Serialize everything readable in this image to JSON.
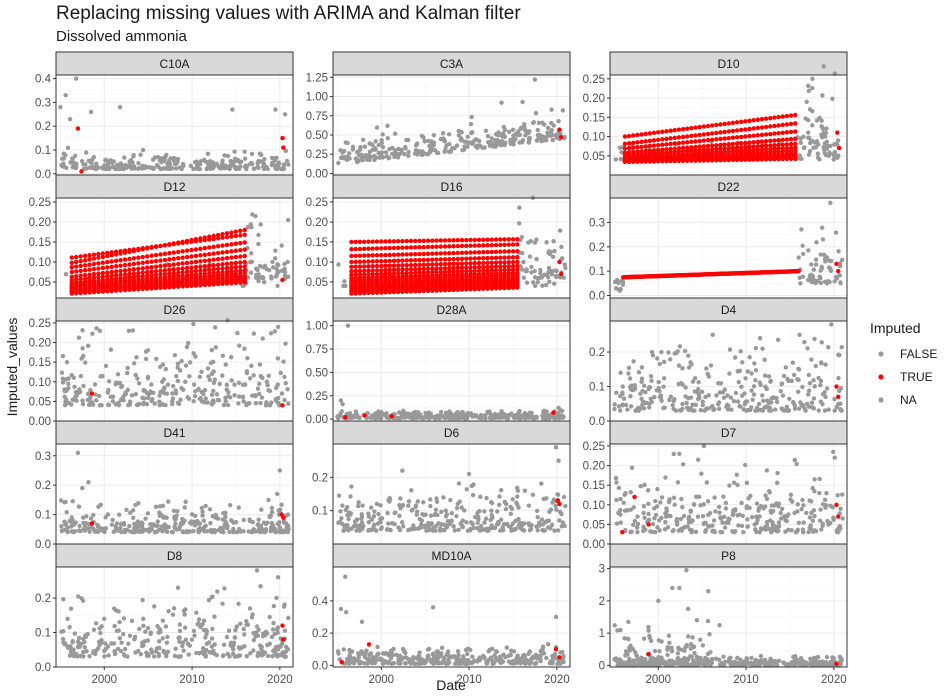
{
  "title": "Replacing missing values with ARIMA and Kalman filter",
  "subtitle": "Dissolved ammonia",
  "chart_data": {
    "type": "scatter",
    "title": "Replacing missing values with ARIMA and Kalman filter",
    "subtitle": "Dissolved ammonia",
    "xlabel": "Date",
    "ylabel": "Imputed_values",
    "x_ticks": [
      2000,
      2010,
      2020
    ],
    "xlim": [
      1994.5,
      2021.5
    ],
    "legend": {
      "title": "Imputed",
      "position": "right",
      "entries": [
        {
          "label": "FALSE",
          "color": "#999999"
        },
        {
          "label": "TRUE",
          "color": "#ff0000"
        },
        {
          "label": "NA",
          "color": "#999999"
        }
      ]
    },
    "colors": {
      "FALSE": "#999999",
      "TRUE": "#ff0000",
      "NA": "#999999"
    },
    "facets": [
      {
        "name": "C10A",
        "ylim": [
          -0.005,
          0.415
        ],
        "yticks": [
          0.0,
          0.1,
          0.2,
          0.3,
          0.4
        ],
        "ytick_labels": [
          "0.0",
          "0.1",
          "0.2",
          "0.3",
          "0.4"
        ],
        "observed": {
          "x_range": [
            1995.0,
            2021.0
          ],
          "base": 0.02,
          "spread": 0.07,
          "count": 260,
          "high": [
            [
              1995.0,
              0.28
            ],
            [
              1995.6,
              0.33
            ],
            [
              1996.1,
              0.23
            ],
            [
              1996.8,
              0.4
            ],
            [
              1998.5,
              0.26
            ],
            [
              2001.8,
              0.28
            ],
            [
              2014.6,
              0.27
            ],
            [
              2019.5,
              0.27
            ],
            [
              2020.6,
              0.25
            ]
          ]
        },
        "imputed": [
          [
            1997.0,
            0.19
          ],
          [
            2020.3,
            0.15
          ],
          [
            2020.4,
            0.11
          ],
          [
            1997.4,
            0.01
          ]
        ]
      },
      {
        "name": "C3A",
        "ylim": [
          -0.02,
          1.28
        ],
        "yticks": [
          0.0,
          0.25,
          0.5,
          0.75,
          1.0,
          1.25
        ],
        "ytick_labels": [
          "0.00",
          "0.25",
          "0.50",
          "0.75",
          "1.00",
          "1.25"
        ],
        "observed": {
          "x_range": [
            1995.0,
            2021.0
          ],
          "trend": [
            0.12,
            0.45
          ],
          "spread": 0.35,
          "count": 280,
          "high": [
            [
              2017.5,
              1.22
            ],
            [
              2013.7,
              0.92
            ],
            [
              2016.1,
              0.93
            ],
            [
              2019.4,
              0.83
            ],
            [
              2020.2,
              0.68
            ]
          ]
        },
        "imputed": [
          [
            2020.3,
            0.57
          ],
          [
            2020.5,
            0.47
          ]
        ]
      },
      {
        "name": "D10",
        "ylim": [
          0.0,
          0.26
        ],
        "yticks": [
          0.05,
          0.1,
          0.15,
          0.2,
          0.25
        ],
        "ytick_labels": [
          "0.05",
          "0.10",
          "0.15",
          "0.20",
          "0.25"
        ],
        "observed": {
          "x_range": [
            1995.0,
            2021.0
          ],
          "base": 0.04,
          "spread": 0.05,
          "count": 90,
          "late_range": [
            2015.8,
            2021.0
          ],
          "late_base": 0.05,
          "late_spread": 0.18,
          "late_count": 60
        },
        "imputed_lines": {
          "x_range": [
            1996.2,
            2015.6
          ],
          "count": 42,
          "lines": [
            [
              0.1,
              0.156
            ],
            [
              0.081,
              0.134
            ],
            [
              0.069,
              0.113
            ],
            [
              0.058,
              0.094
            ],
            [
              0.052,
              0.081
            ],
            [
              0.047,
              0.071
            ],
            [
              0.043,
              0.063
            ],
            [
              0.04,
              0.056
            ],
            [
              0.038,
              0.051
            ],
            [
              0.036,
              0.047
            ],
            [
              0.035,
              0.044
            ],
            [
              0.034,
              0.042
            ]
          ]
        },
        "imputed": [
          [
            2020.4,
            0.11
          ],
          [
            2020.6,
            0.07
          ]
        ]
      },
      {
        "name": "D12",
        "ylim": [
          0.01,
          0.26
        ],
        "yticks": [
          0.05,
          0.1,
          0.15,
          0.2,
          0.25
        ],
        "ytick_labels": [
          "0.05",
          "0.10",
          "0.15",
          "0.20",
          "0.25"
        ],
        "observed": {
          "x_range": [
            1995.0,
            2021.0
          ],
          "base": 0.04,
          "spread": 0.05,
          "count": 50,
          "late_range": [
            2016.0,
            2021.0
          ],
          "late_base": 0.06,
          "late_spread": 0.16,
          "late_count": 55
        },
        "imputed_lines": {
          "x_range": [
            1996.3,
            2016.0
          ],
          "count": 40,
          "lines": [
            [
              0.098,
              0.18
            ],
            [
              0.111,
              0.168
            ],
            [
              0.087,
              0.149
            ],
            [
              0.075,
              0.131
            ],
            [
              0.063,
              0.115
            ],
            [
              0.055,
              0.1
            ],
            [
              0.048,
              0.089
            ],
            [
              0.043,
              0.079
            ],
            [
              0.039,
              0.072
            ],
            [
              0.036,
              0.066
            ],
            [
              0.033,
              0.061
            ],
            [
              0.03,
              0.057
            ],
            [
              0.027,
              0.054
            ],
            [
              0.024,
              0.051
            ],
            [
              0.021,
              0.049
            ]
          ]
        },
        "imputed": [
          [
            2020.3,
            0.055
          ]
        ]
      },
      {
        "name": "D16",
        "ylim": [
          0.01,
          0.26
        ],
        "yticks": [
          0.05,
          0.1,
          0.15,
          0.2,
          0.25
        ],
        "ytick_labels": [
          "0.05",
          "0.10",
          "0.15",
          "0.20",
          "0.25"
        ],
        "observed": {
          "x_range": [
            1995.0,
            2021.0
          ],
          "base": 0.04,
          "spread": 0.05,
          "count": 50,
          "late_range": [
            2015.6,
            2021.0
          ],
          "late_base": 0.06,
          "late_spread": 0.17,
          "late_count": 55
        },
        "imputed_lines": {
          "x_range": [
            1996.6,
            2015.5
          ],
          "count": 40,
          "lines": [
            [
              0.15,
              0.157
            ],
            [
              0.132,
              0.144
            ],
            [
              0.115,
              0.127
            ],
            [
              0.1,
              0.112
            ],
            [
              0.088,
              0.1
            ],
            [
              0.077,
              0.09
            ],
            [
              0.068,
              0.081
            ],
            [
              0.06,
              0.073
            ],
            [
              0.054,
              0.067
            ],
            [
              0.049,
              0.061
            ],
            [
              0.044,
              0.056
            ],
            [
              0.04,
              0.052
            ],
            [
              0.037,
              0.049
            ],
            [
              0.033,
              0.046
            ],
            [
              0.03,
              0.043
            ],
            [
              0.026,
              0.04
            ],
            [
              0.021,
              0.036
            ]
          ]
        },
        "imputed": [
          [
            2020.3,
            0.1
          ],
          [
            2020.5,
            0.07
          ]
        ]
      },
      {
        "name": "D22",
        "ylim": [
          -0.01,
          0.4
        ],
        "yticks": [
          0.0,
          0.1,
          0.2,
          0.3
        ],
        "ytick_labels": [
          "0.0",
          "0.1",
          "0.2",
          "0.3"
        ],
        "observed": {
          "x_range": [
            1995.0,
            1996.0
          ],
          "base": 0.02,
          "spread": 0.06,
          "count": 12,
          "late_range": [
            2016.0,
            2021.0
          ],
          "late_base": 0.05,
          "late_spread": 0.2,
          "late_count": 60,
          "high": [
            [
              2019.6,
              0.38
            ]
          ]
        },
        "imputed_lines": {
          "x_range": [
            1996.0,
            2016.0
          ],
          "count": 240,
          "lines": [
            [
              0.075,
              0.1
            ]
          ]
        },
        "imputed": [
          [
            2020.3,
            0.13
          ],
          [
            2020.5,
            0.1
          ]
        ]
      },
      {
        "name": "D26",
        "ylim": [
          0.0,
          0.255
        ],
        "yticks": [
          0.0,
          0.05,
          0.1,
          0.15,
          0.2,
          0.25
        ],
        "ytick_labels": [
          "0.00",
          "0.05",
          "0.10",
          "0.15",
          "0.20",
          "0.25"
        ],
        "observed": {
          "x_range": [
            1995.0,
            2021.0
          ],
          "base": 0.04,
          "spread": 0.17,
          "count": 300,
          "high": [
            [
              2019.8,
              0.24
            ],
            [
              1999.5,
              0.23
            ],
            [
              2002.8,
              0.23
            ]
          ]
        },
        "imputed": [
          [
            1998.6,
            0.07
          ],
          [
            2020.3,
            0.04
          ]
        ]
      },
      {
        "name": "D28A",
        "ylim": [
          -0.02,
          1.05
        ],
        "yticks": [
          0.0,
          0.25,
          0.5,
          0.75,
          1.0
        ],
        "ytick_labels": [
          "0.00",
          "0.25",
          "0.50",
          "0.75",
          "1.00"
        ],
        "observed": {
          "x_range": [
            1995.0,
            2021.0
          ],
          "base": 0.01,
          "spread": 0.07,
          "count": 330,
          "high": [
            [
              1996.2,
              1.0
            ],
            [
              1995.4,
              0.2
            ],
            [
              1995.6,
              0.16
            ],
            [
              2020.2,
              0.12
            ]
          ]
        },
        "imputed": [
          [
            1995.9,
            0.02
          ],
          [
            1998.1,
            0.04
          ],
          [
            2001.2,
            0.03
          ],
          [
            2019.6,
            0.07
          ]
        ]
      },
      {
        "name": "D4",
        "ylim": [
          0.0,
          0.29
        ],
        "yticks": [
          0.0,
          0.1,
          0.2
        ],
        "ytick_labels": [
          "0.0",
          "0.1",
          "0.2"
        ],
        "observed": {
          "x_range": [
            1995.0,
            2021.0
          ],
          "base": 0.03,
          "spread": 0.18,
          "count": 320,
          "high": [
            [
              2019.7,
              0.28
            ],
            [
              2006.2,
              0.25
            ],
            [
              2011.6,
              0.24
            ],
            [
              2016.1,
              0.25
            ]
          ]
        },
        "imputed": [
          [
            2020.3,
            0.1
          ],
          [
            2020.5,
            0.07
          ]
        ]
      },
      {
        "name": "D41",
        "ylim": [
          0.0,
          0.34
        ],
        "yticks": [
          0.0,
          0.1,
          0.2,
          0.3
        ],
        "ytick_labels": [
          "0.0",
          "0.1",
          "0.2",
          "0.3"
        ],
        "observed": {
          "x_range": [
            1995.0,
            2021.0
          ],
          "base": 0.04,
          "spread": 0.09,
          "count": 330,
          "high": [
            [
              1997.0,
              0.31
            ],
            [
              1998.2,
              0.21
            ],
            [
              2020.0,
              0.25
            ],
            [
              2019.7,
              0.17
            ],
            [
              1997.5,
              0.19
            ]
          ]
        },
        "imputed": [
          [
            1998.6,
            0.07
          ],
          [
            2020.2,
            0.1
          ],
          [
            2020.4,
            0.09
          ]
        ]
      },
      {
        "name": "D6",
        "ylim": [
          0.0,
          0.3
        ],
        "yticks": [
          0.1,
          0.2
        ],
        "ytick_labels": [
          "0.1",
          "0.2"
        ],
        "observed": {
          "x_range": [
            1995.0,
            2021.0
          ],
          "base": 0.04,
          "spread": 0.13,
          "count": 320,
          "high": [
            [
              2019.9,
              0.29
            ],
            [
              2002.4,
              0.22
            ],
            [
              2010.0,
              0.21
            ],
            [
              2020.2,
              0.25
            ]
          ]
        },
        "imputed": [
          [
            2020.1,
            0.13
          ],
          [
            2020.3,
            0.12
          ]
        ]
      },
      {
        "name": "D7",
        "ylim": [
          0.0,
          0.255
        ],
        "yticks": [
          0.0,
          0.05,
          0.1,
          0.15,
          0.2,
          0.25
        ],
        "ytick_labels": [
          "0.00",
          "0.05",
          "0.10",
          "0.15",
          "0.20",
          "0.25"
        ],
        "observed": {
          "x_range": [
            1995.0,
            2021.0
          ],
          "base": 0.03,
          "spread": 0.16,
          "count": 320,
          "high": [
            [
              2005.2,
              0.25
            ],
            [
              2002.4,
              0.23
            ],
            [
              2020.1,
              0.22
            ]
          ]
        },
        "imputed": [
          [
            1995.9,
            0.03
          ],
          [
            1997.3,
            0.12
          ],
          [
            1998.9,
            0.05
          ],
          [
            2020.3,
            0.1
          ],
          [
            2020.5,
            0.07
          ]
        ]
      },
      {
        "name": "D8",
        "ylim": [
          0.0,
          0.29
        ],
        "yticks": [
          0.0,
          0.1,
          0.2
        ],
        "ytick_labels": [
          "0.0",
          "0.1",
          "0.2"
        ],
        "observed": {
          "x_range": [
            1995.0,
            2021.0
          ],
          "base": 0.03,
          "spread": 0.17,
          "count": 320,
          "high": [
            [
              2017.4,
              0.28
            ],
            [
              2019.8,
              0.26
            ],
            [
              2008.4,
              0.23
            ]
          ]
        },
        "imputed": [
          [
            2020.3,
            0.12
          ],
          [
            2020.4,
            0.08
          ]
        ]
      },
      {
        "name": "MD10A",
        "ylim": [
          -0.01,
          0.61
        ],
        "yticks": [
          0.0,
          0.2,
          0.4
        ],
        "ytick_labels": [
          "0.0",
          "0.2",
          "0.4"
        ],
        "observed": {
          "x_range": [
            1995.0,
            2021.0
          ],
          "base": 0.01,
          "spread": 0.1,
          "count": 330,
          "high": [
            [
              1995.9,
              0.55
            ],
            [
              1995.4,
              0.35
            ],
            [
              1996.0,
              0.33
            ],
            [
              2005.9,
              0.36
            ],
            [
              2019.9,
              0.3
            ],
            [
              1997.8,
              0.27
            ]
          ]
        },
        "imputed": [
          [
            1995.5,
            0.02
          ],
          [
            1998.6,
            0.13
          ],
          [
            2019.9,
            0.1
          ],
          [
            2020.3,
            0.05
          ]
        ]
      },
      {
        "name": "P8",
        "ylim": [
          -0.05,
          3.05
        ],
        "yticks": [
          0,
          1,
          2,
          3
        ],
        "ytick_labels": [
          "0",
          "1",
          "2",
          "3"
        ],
        "observed": {
          "x_range": [
            1995.0,
            2021.0
          ],
          "base": 0.01,
          "spread": 0.25,
          "count": 330,
          "early_range": [
            1995.0,
            2007.0
          ],
          "early_base": 0.1,
          "early_spread": 1.1,
          "early_count": 90,
          "high": [
            [
              2003.2,
              2.95
            ],
            [
              2001.6,
              2.4
            ],
            [
              2002.4,
              2.4
            ],
            [
              2000.0,
              2.0
            ],
            [
              2005.7,
              2.3
            ],
            [
              2003.4,
              1.75
            ],
            [
              2004.4,
              1.4
            ]
          ]
        },
        "imputed": [
          [
            1998.9,
            0.35
          ],
          [
            2020.3,
            0.05
          ]
        ]
      }
    ]
  }
}
